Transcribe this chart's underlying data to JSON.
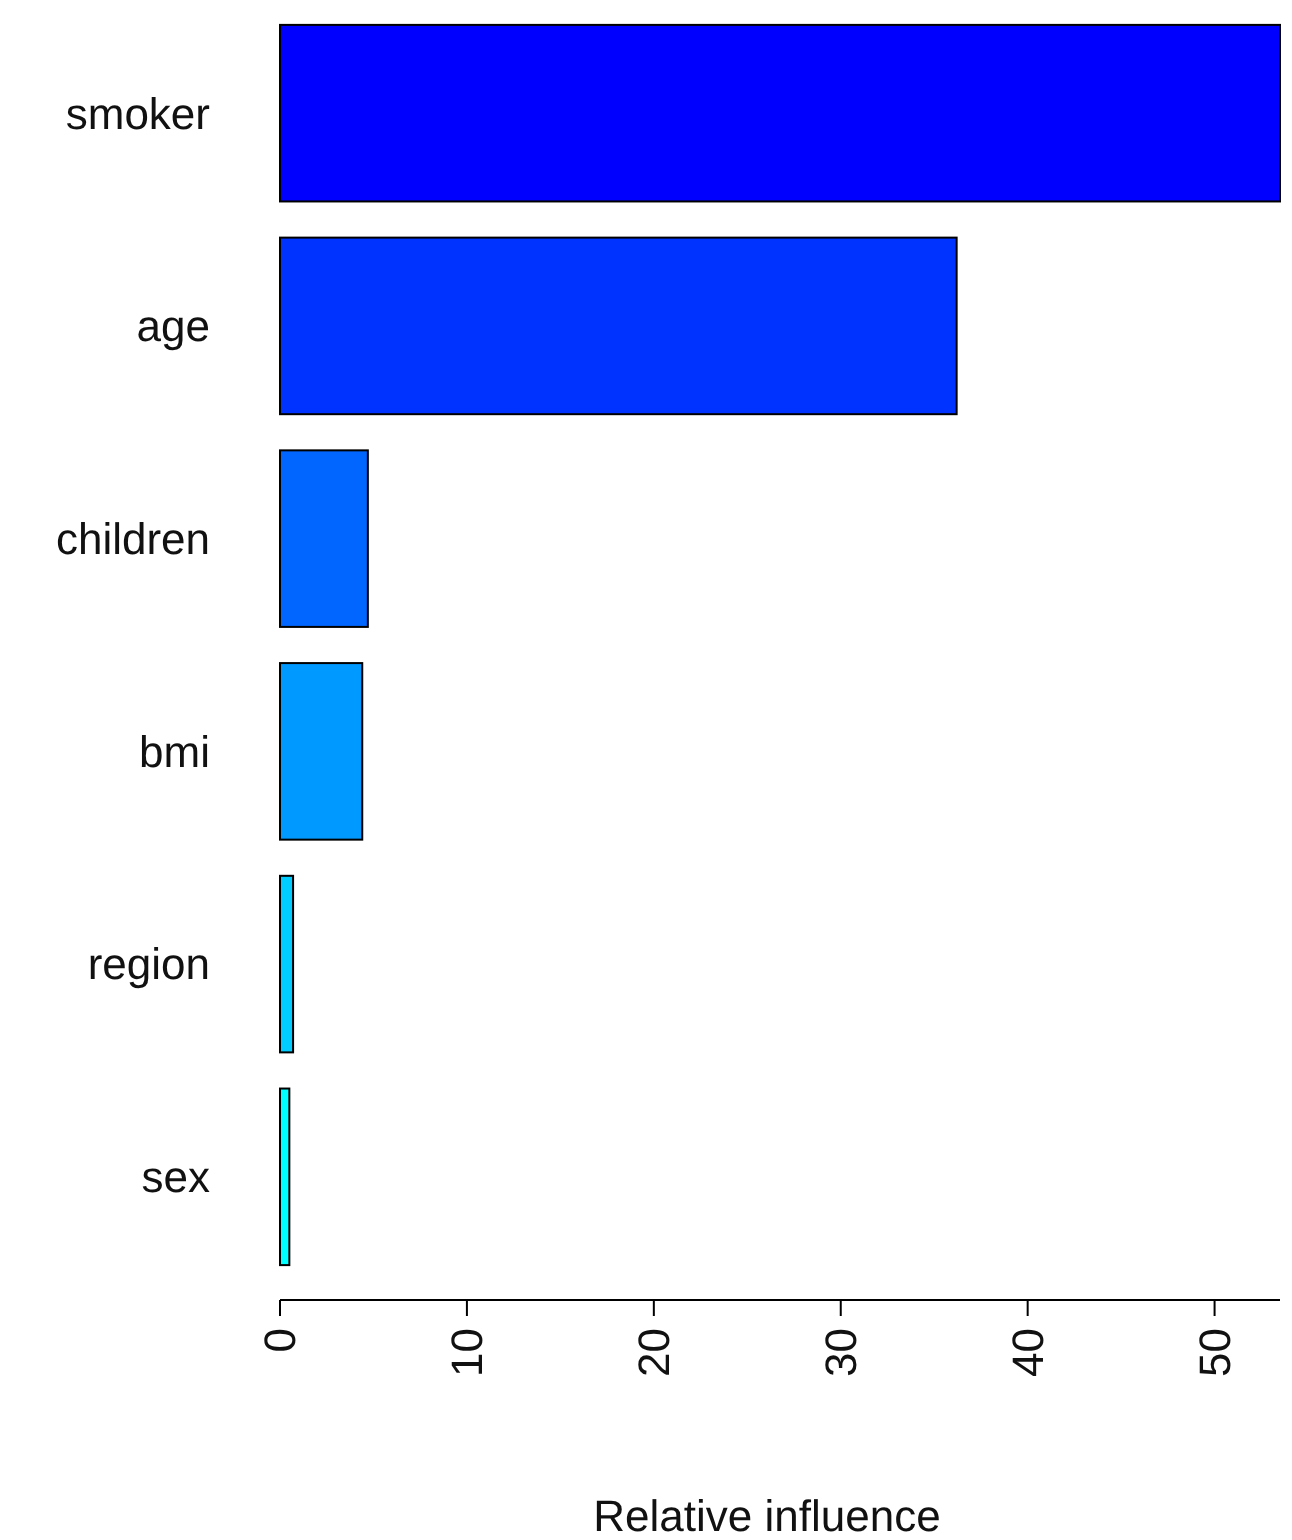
{
  "chart_data": {
    "type": "bar",
    "orientation": "horizontal",
    "xlabel": "Relative influence",
    "categories": [
      "smoker",
      "age",
      "children",
      "bmi",
      "region",
      "sex"
    ],
    "values": [
      53.5,
      36.2,
      4.7,
      4.4,
      0.7,
      0.5
    ],
    "colors": [
      "#0000ff",
      "#0033ff",
      "#0066ff",
      "#0099ff",
      "#00ccff",
      "#00ffff"
    ],
    "xlim": [
      0,
      53.5
    ],
    "xticks": [
      0,
      10,
      20,
      30,
      40,
      50
    ],
    "grid": false
  }
}
